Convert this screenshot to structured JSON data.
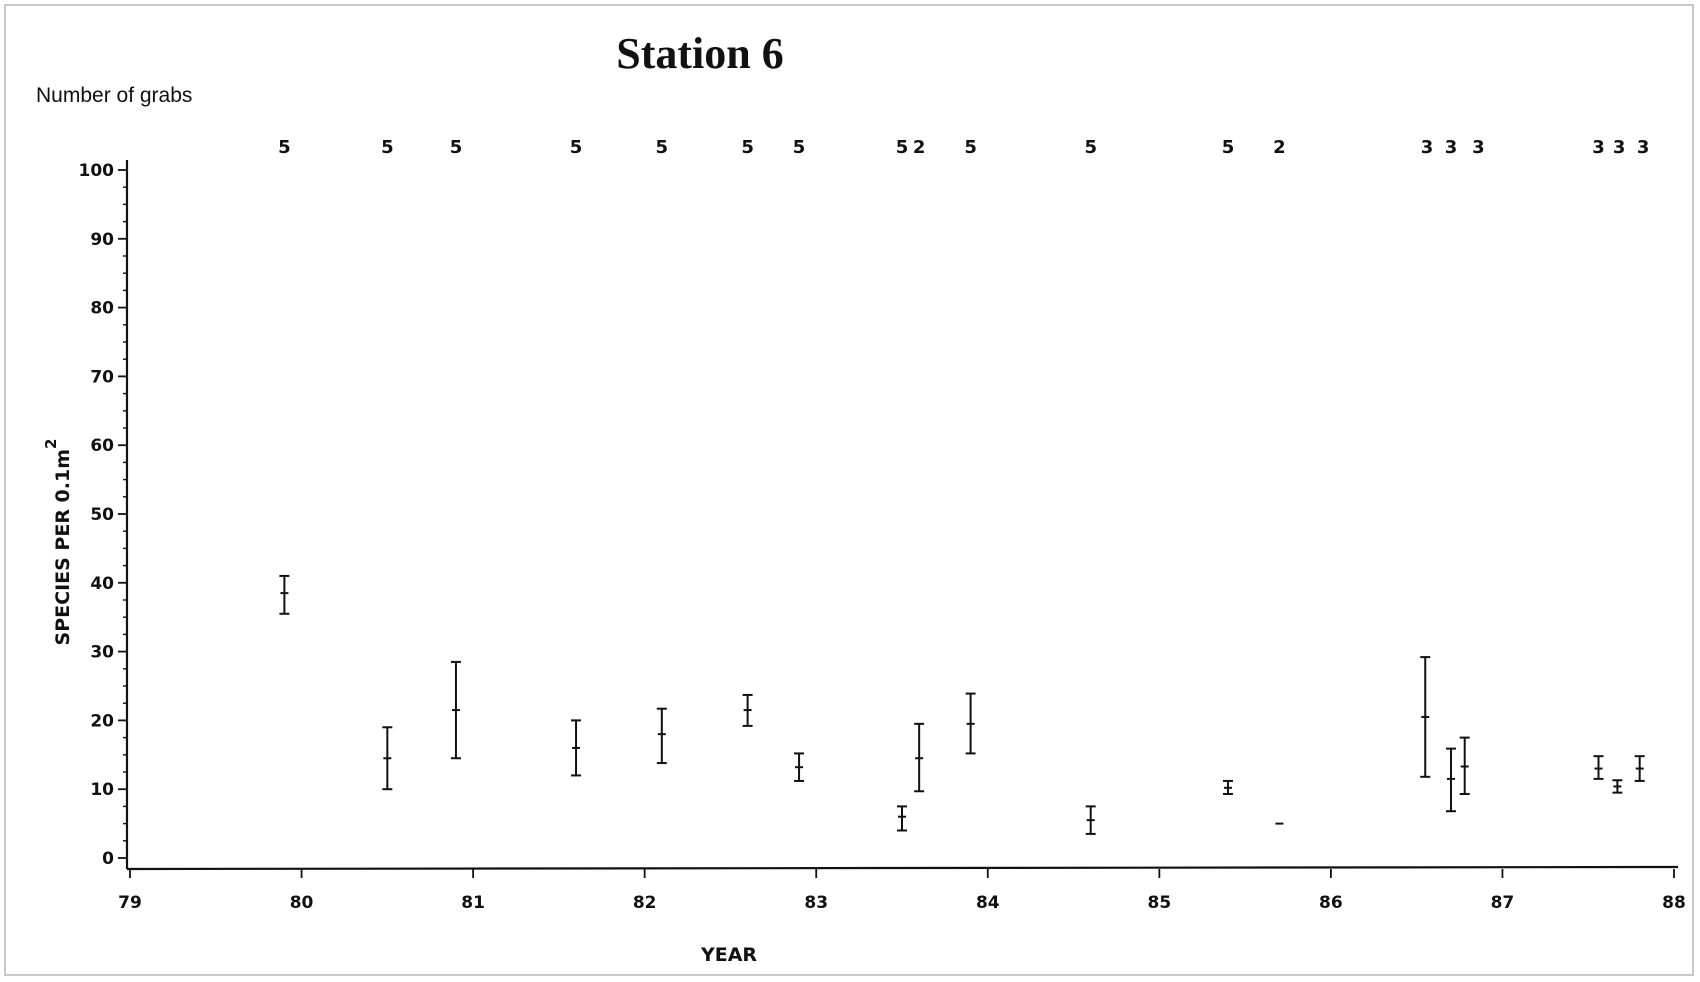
{
  "chart_data": {
    "type": "errorbar",
    "title": "Station 6",
    "top_label": "Number of grabs",
    "xlabel": "YEAR",
    "ylabel": "SPECIES PER 0.1m",
    "ylabel_superscript": "2",
    "xlim": [
      79,
      88
    ],
    "ylim": [
      0,
      100
    ],
    "x_ticks": [
      {
        "value": 79,
        "label": "79"
      },
      {
        "value": 80,
        "label": "80"
      },
      {
        "value": 81,
        "label": "81"
      },
      {
        "value": 82,
        "label": "82"
      },
      {
        "value": 83,
        "label": "83"
      },
      {
        "value": 84,
        "label": "84"
      },
      {
        "value": 85,
        "label": "85"
      },
      {
        "value": 86,
        "label": "86"
      },
      {
        "value": 87,
        "label": "87"
      },
      {
        "value": 88,
        "label": "88"
      }
    ],
    "y_ticks": [
      {
        "value": 0,
        "label": "0"
      },
      {
        "value": 10,
        "label": "10"
      },
      {
        "value": 20,
        "label": "20"
      },
      {
        "value": 30,
        "label": "30"
      },
      {
        "value": 40,
        "label": "40"
      },
      {
        "value": 50,
        "label": "50"
      },
      {
        "value": 60,
        "label": "60"
      },
      {
        "value": 70,
        "label": "70"
      },
      {
        "value": 80,
        "label": "80"
      },
      {
        "value": 90,
        "label": "90"
      },
      {
        "value": 100,
        "label": "100"
      }
    ],
    "grab_counts": [
      {
        "x": 79.9,
        "label": "5"
      },
      {
        "x": 80.5,
        "label": "5"
      },
      {
        "x": 80.9,
        "label": "5"
      },
      {
        "x": 81.6,
        "label": "5"
      },
      {
        "x": 82.1,
        "label": "5"
      },
      {
        "x": 82.6,
        "label": "5"
      },
      {
        "x": 82.9,
        "label": "5"
      },
      {
        "x": 83.5,
        "label": "5"
      },
      {
        "x": 83.6,
        "label": "2"
      },
      {
        "x": 83.9,
        "label": "5"
      },
      {
        "x": 84.6,
        "label": "5"
      },
      {
        "x": 85.4,
        "label": "5"
      },
      {
        "x": 85.7,
        "label": "2"
      },
      {
        "x": 86.56,
        "label": "3"
      },
      {
        "x": 86.7,
        "label": "3"
      },
      {
        "x": 86.86,
        "label": "3"
      },
      {
        "x": 87.56,
        "label": "3"
      },
      {
        "x": 87.68,
        "label": "3"
      },
      {
        "x": 87.82,
        "label": "3"
      }
    ],
    "points": [
      {
        "x": 79.9,
        "mean": 38.5,
        "low": 35.5,
        "high": 41.0
      },
      {
        "x": 80.5,
        "mean": 14.5,
        "low": 10.0,
        "high": 19.0
      },
      {
        "x": 80.9,
        "mean": 21.5,
        "low": 14.5,
        "high": 28.5
      },
      {
        "x": 81.6,
        "mean": 16.0,
        "low": 12.0,
        "high": 20.0
      },
      {
        "x": 82.1,
        "mean": 18.0,
        "low": 13.8,
        "high": 21.7
      },
      {
        "x": 82.6,
        "mean": 21.5,
        "low": 19.2,
        "high": 23.7
      },
      {
        "x": 82.9,
        "mean": 13.2,
        "low": 11.2,
        "high": 15.2
      },
      {
        "x": 83.5,
        "mean": 6.0,
        "low": 4.0,
        "high": 7.5
      },
      {
        "x": 83.6,
        "mean": 14.5,
        "low": 9.7,
        "high": 19.5
      },
      {
        "x": 83.9,
        "mean": 19.5,
        "low": 15.2,
        "high": 23.9
      },
      {
        "x": 84.6,
        "mean": 5.5,
        "low": 3.5,
        "high": 7.5
      },
      {
        "x": 85.4,
        "mean": 10.2,
        "low": 9.3,
        "high": 11.2
      },
      {
        "x": 85.7,
        "mean": 5.0,
        "low": 5.0,
        "high": 5.0
      },
      {
        "x": 86.55,
        "mean": 20.5,
        "low": 11.8,
        "high": 29.2
      },
      {
        "x": 86.7,
        "mean": 11.5,
        "low": 6.8,
        "high": 15.9
      },
      {
        "x": 86.78,
        "mean": 13.3,
        "low": 9.3,
        "high": 17.5
      },
      {
        "x": 87.56,
        "mean": 13.0,
        "low": 11.5,
        "high": 14.8
      },
      {
        "x": 87.67,
        "mean": 10.4,
        "low": 9.5,
        "high": 11.3
      },
      {
        "x": 87.8,
        "mean": 13.0,
        "low": 11.2,
        "high": 14.8
      }
    ],
    "grid": false,
    "legend": "none"
  }
}
